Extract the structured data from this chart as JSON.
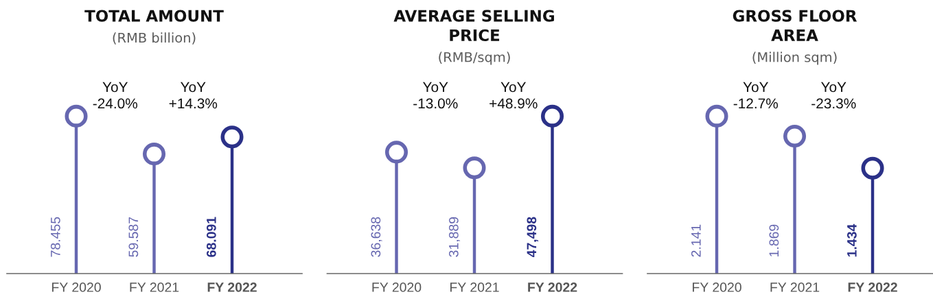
{
  "chart_data": [
    {
      "type": "lollipop",
      "title": "TOTAL AMOUNT",
      "subtitle": "(RMB billion)",
      "categories": [
        "FY 2020",
        "FY 2021",
        "FY 2022"
      ],
      "values": [
        78.455,
        59.587,
        68.091
      ],
      "colors": [
        "#6667b0",
        "#6667b0",
        "#2b3188"
      ],
      "value_labels": [
        "78.455",
        "59.587",
        "68.091"
      ],
      "marker": "circle",
      "tick_labels": "x",
      "annotations": [
        "YoY\n-24.0%",
        "YoY\n+14.3%"
      ]
    },
    {
      "type": "lollipop",
      "title": "AVERAGE SELLING\nPRICE",
      "subtitle": "(RMB/sqm)",
      "categories": [
        "FY 2020",
        "FY 2021",
        "FY 2022"
      ],
      "values": [
        36638,
        31889,
        47498
      ],
      "colors": [
        "#6667b0",
        "#6667b0",
        "#2b3188"
      ],
      "value_labels": [
        "36,638",
        "31,889",
        "47,498"
      ],
      "marker": "circle",
      "tick_labels": "x",
      "annotations": [
        "YoY\n-13.0%",
        "YoY\n+48.9%"
      ]
    },
    {
      "type": "lollipop",
      "title": "GROSS FLOOR\nAREA",
      "subtitle": "(Million sqm)",
      "categories": [
        "FY 2020",
        "FY 2021",
        "FY 2022"
      ],
      "values": [
        2.141,
        1.869,
        1.434
      ],
      "colors": [
        "#6667b0",
        "#6667b0",
        "#2b3188"
      ],
      "value_labels": [
        "2.141",
        "1.869",
        "1.434"
      ],
      "marker": "circle",
      "tick_labels": "x",
      "annotations": [
        "YoY\n-12.7%",
        "YoY\n-23.3%"
      ]
    }
  ]
}
